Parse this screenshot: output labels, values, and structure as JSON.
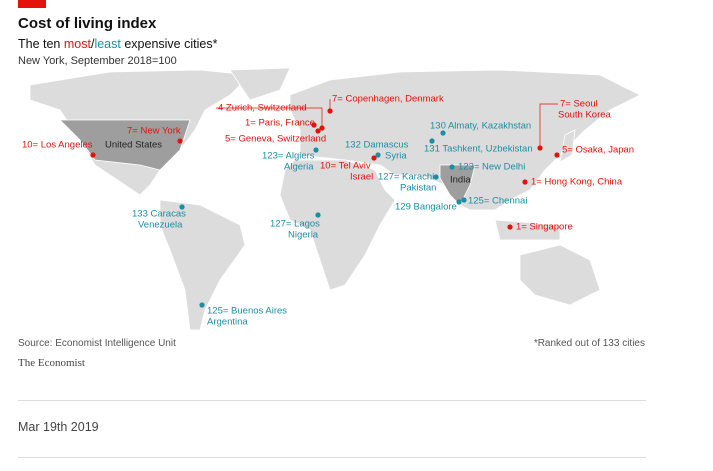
{
  "header": {
    "title": "Cost of living index",
    "subtitle": [
      "The ten ",
      "most",
      "/",
      "least",
      " expensive cities*"
    ],
    "note": "New York, September 2018=100"
  },
  "countries": [
    "United States",
    "India"
  ],
  "cities": [
    {
      "lines": [
        "10= Los Angeles"
      ],
      "color": "#e3120b"
    },
    {
      "lines": [
        "7= New York"
      ],
      "color": "#e3120b"
    },
    {
      "lines": [
        "4 Zurich, Switzerland"
      ],
      "color": "#e3120b"
    },
    {
      "lines": [
        "7= Copenhagen, Denmark"
      ],
      "color": "#e3120b"
    },
    {
      "lines": [
        "1= Paris, France"
      ],
      "color": "#e3120b"
    },
    {
      "lines": [
        "5= Geneva, Switzerland"
      ],
      "color": "#e3120b"
    },
    {
      "lines": [
        "123= Algiers",
        "Algeria"
      ],
      "color": "#1b8ea3"
    },
    {
      "lines": [
        "10= Tel Aviv",
        "Israel"
      ],
      "color": "#e3120b"
    },
    {
      "lines": [
        "132 Damascus",
        "Syria"
      ],
      "color": "#1b8ea3"
    },
    {
      "lines": [
        "130 Almaty, Kazakhstan"
      ],
      "color": "#1b8ea3"
    },
    {
      "lines": [
        "131 Tashkent, Uzbekistan"
      ],
      "color": "#1b8ea3"
    },
    {
      "lines": [
        "123= New Delhi"
      ],
      "color": "#1b8ea3"
    },
    {
      "lines": [
        "127= Karachi",
        "Pakistan"
      ],
      "color": "#1b8ea3"
    },
    {
      "lines": [
        "129 Bangalore"
      ],
      "color": "#1b8ea3"
    },
    {
      "lines": [
        "125= Chennai"
      ],
      "color": "#1b8ea3"
    },
    {
      "lines": [
        "7= Seoul",
        "South Korea"
      ],
      "color": "#e3120b"
    },
    {
      "lines": [
        "5= Osaka, Japan"
      ],
      "color": "#e3120b"
    },
    {
      "lines": [
        "1= Hong Kong, China"
      ],
      "color": "#e3120b"
    },
    {
      "lines": [
        "1= Singapore"
      ],
      "color": "#e3120b"
    },
    {
      "lines": [
        "133 Caracas",
        "Venezuela"
      ],
      "color": "#1b8ea3"
    },
    {
      "lines": [
        "127= Lagos",
        "Nigeria"
      ],
      "color": "#1b8ea3"
    },
    {
      "lines": [
        "125= Buenos Aires",
        "Argentina"
      ],
      "color": "#1b8ea3"
    }
  ],
  "footer": {
    "source": "Source: Economist Intelligence Unit",
    "footnote": "*Ranked out of 133 cities",
    "brand": "The Economist"
  },
  "date": "Mar 19th 2019"
}
